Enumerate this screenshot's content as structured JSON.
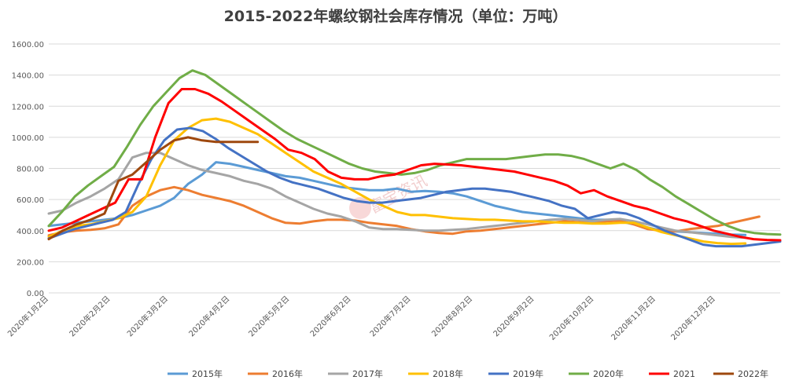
{
  "chart_data": {
    "type": "line",
    "title": "2015-2022年螺纹钢社会库存情况（单位：万吨）",
    "xlabel": "",
    "ylabel": "",
    "ylim": [
      0,
      1600
    ],
    "y_ticks": [
      "0.00",
      "200.00",
      "400.00",
      "600.00",
      "800.00",
      "1000.00",
      "1200.00",
      "1400.00",
      "1600.00"
    ],
    "x_ticks": [
      {
        "label": "2020年1月2日",
        "week": 0
      },
      {
        "label": "2020年2月2日",
        "week": 4.43
      },
      {
        "label": "2020年3月2日",
        "week": 8.57
      },
      {
        "label": "2020年4月2日",
        "week": 13.0
      },
      {
        "label": "2020年5月2日",
        "week": 17.29
      },
      {
        "label": "2020年6月2日",
        "week": 21.71
      },
      {
        "label": "2020年7月2日",
        "week": 26.0
      },
      {
        "label": "2020年8月2日",
        "week": 30.43
      },
      {
        "label": "2020年9月2日",
        "week": 34.86
      },
      {
        "label": "2020年10月2日",
        "week": 39.14
      },
      {
        "label": "2020年11月2日",
        "week": 43.57
      },
      {
        "label": "2020年12月2日",
        "week": 47.86
      }
    ],
    "grid": true,
    "legend_position": "bottom",
    "watermark": "富宝资讯",
    "series": [
      {
        "name": "2015年",
        "color": "#5b9bd5",
        "values": [
          430,
          440,
          450,
          460,
          470,
          480,
          500,
          530,
          560,
          610,
          700,
          760,
          840,
          830,
          810,
          790,
          770,
          750,
          740,
          720,
          700,
          680,
          670,
          660,
          660,
          670,
          650,
          655,
          650,
          640,
          620,
          590,
          560,
          540,
          520,
          510,
          500,
          490,
          480,
          470,
          470,
          460,
          440,
          420,
          400,
          395,
          390,
          385,
          380,
          375,
          372
        ]
      },
      {
        "name": "2016年",
        "color": "#ed7d31",
        "values": [
          370,
          390,
          400,
          405,
          415,
          440,
          560,
          620,
          660,
          680,
          660,
          630,
          610,
          590,
          560,
          520,
          480,
          450,
          445,
          460,
          470,
          470,
          465,
          450,
          440,
          430,
          410,
          395,
          385,
          380,
          395,
          400,
          410,
          420,
          430,
          440,
          450,
          460,
          455,
          450,
          460,
          465,
          440,
          410,
          400,
          395,
          410,
          420,
          430,
          450,
          470,
          490
        ]
      },
      {
        "name": "2017年",
        "color": "#a5a5a5",
        "values": [
          510,
          530,
          580,
          620,
          670,
          730,
          870,
          900,
          900,
          860,
          820,
          790,
          770,
          750,
          720,
          700,
          670,
          620,
          580,
          540,
          510,
          490,
          460,
          420,
          410,
          410,
          405,
          400,
          400,
          405,
          410,
          420,
          430,
          440,
          450,
          460,
          470,
          475,
          470,
          460,
          470,
          475,
          460,
          440,
          420,
          400,
          390,
          380,
          370,
          360,
          355
        ]
      },
      {
        "name": "2018年",
        "color": "#ffc000",
        "values": [
          360,
          400,
          430,
          440,
          460,
          480,
          520,
          620,
          820,
          980,
          1060,
          1110,
          1120,
          1100,
          1060,
          1020,
          960,
          900,
          840,
          780,
          740,
          700,
          650,
          600,
          560,
          520,
          500,
          500,
          490,
          480,
          475,
          470,
          470,
          465,
          460,
          460,
          455,
          450,
          450,
          445,
          445,
          450,
          450,
          420,
          390,
          370,
          350,
          330,
          320,
          315,
          318
        ]
      },
      {
        "name": "2019年",
        "color": "#4472c4",
        "values": [
          350,
          380,
          410,
          430,
          450,
          470,
          520,
          700,
          860,
          980,
          1050,
          1060,
          1040,
          990,
          930,
          880,
          830,
          780,
          740,
          710,
          690,
          670,
          640,
          610,
          590,
          580,
          580,
          590,
          600,
          610,
          630,
          650,
          660,
          670,
          670,
          660,
          650,
          630,
          610,
          590,
          560,
          540,
          480,
          500,
          520,
          510,
          480,
          440,
          400,
          370,
          340,
          310,
          300,
          300,
          300,
          310,
          320,
          330
        ]
      },
      {
        "name": "2020年",
        "color": "#70ad47",
        "values": [
          430,
          520,
          620,
          690,
          750,
          810,
          940,
          1080,
          1200,
          1290,
          1380,
          1430,
          1400,
          1340,
          1280,
          1220,
          1160,
          1100,
          1040,
          990,
          950,
          910,
          870,
          830,
          800,
          780,
          770,
          760,
          770,
          790,
          820,
          840,
          860,
          860,
          860,
          860,
          870,
          880,
          890,
          890,
          880,
          860,
          830,
          800,
          830,
          790,
          730,
          680,
          620,
          570,
          520,
          470,
          430,
          400,
          385,
          378,
          375
        ]
      },
      {
        "name": "2021",
        "color": "#ff0000",
        "values": [
          400,
          420,
          460,
          500,
          540,
          580,
          730,
          730,
          1000,
          1220,
          1310,
          1310,
          1280,
          1230,
          1170,
          1110,
          1050,
          990,
          920,
          900,
          860,
          780,
          740,
          730,
          730,
          750,
          760,
          790,
          820,
          830,
          825,
          820,
          810,
          800,
          790,
          780,
          760,
          740,
          720,
          690,
          640,
          660,
          620,
          590,
          560,
          540,
          510,
          480,
          460,
          430,
          400,
          380,
          360,
          345,
          340,
          338
        ]
      },
      {
        "name": "2022年",
        "color": "#9e480e",
        "values": [
          345,
          400,
          440,
          470,
          510,
          720,
          760,
          840,
          920,
          980,
          1000,
          980,
          970,
          970,
          970,
          970
        ]
      }
    ]
  }
}
